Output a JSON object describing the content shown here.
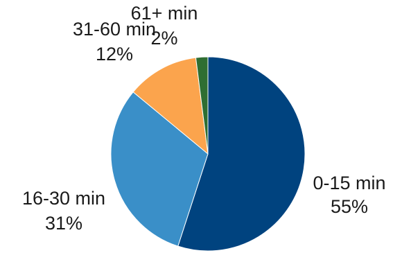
{
  "chart_data": {
    "type": "pie",
    "title": "",
    "slices": [
      {
        "label": "0-15 min",
        "percent_label": "55%",
        "value": 55,
        "color": "#00437f"
      },
      {
        "label": "16-30 min",
        "percent_label": "31%",
        "value": 31,
        "color": "#3a8fc8"
      },
      {
        "label": "31-60 min",
        "percent_label": "12%",
        "value": 12,
        "color": "#fba44d"
      },
      {
        "label": "61+ min",
        "percent_label": "2%",
        "value": 2,
        "color": "#2f6e32"
      }
    ],
    "start_direction": "top",
    "direction": "clockwise",
    "legend": "none"
  }
}
